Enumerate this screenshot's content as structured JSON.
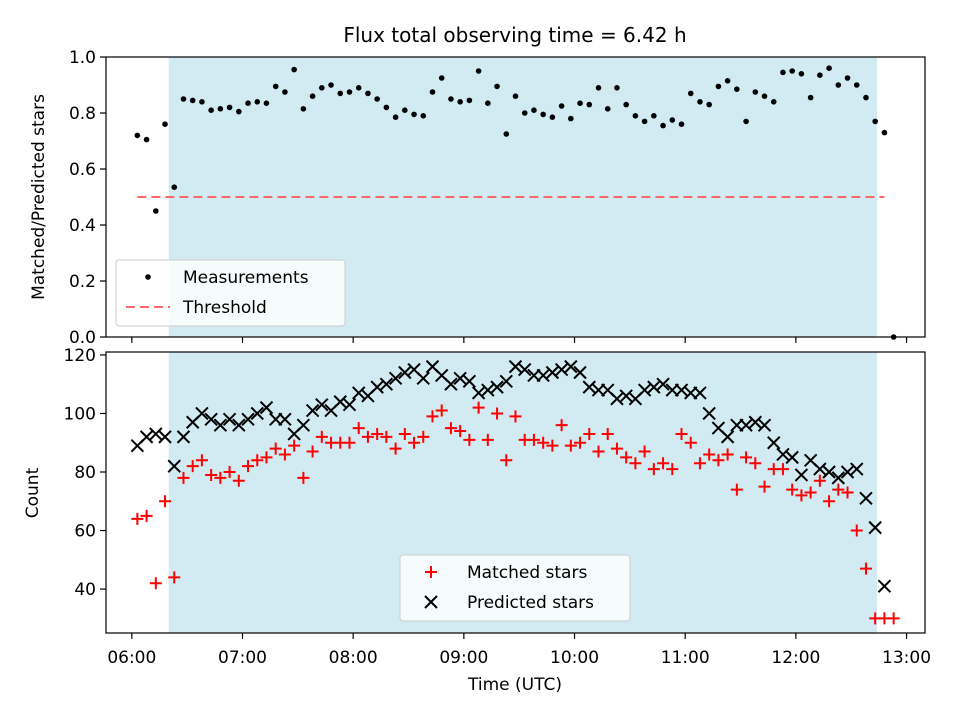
{
  "title": "Flux total observing time = 6.42 h",
  "shaded_region": {
    "start": "06:20",
    "end": "12:44",
    "color": "#add8e6"
  },
  "x_axis": {
    "label": "Time (UTC)",
    "ticks": [
      "06:00",
      "07:00",
      "08:00",
      "09:00",
      "10:00",
      "11:00",
      "12:00",
      "13:00"
    ]
  },
  "chart_data": [
    {
      "type": "scatter",
      "ylabel": "Matched/Predicted stars",
      "xlim": [
        "05:46",
        "13:10"
      ],
      "ylim": [
        0,
        1.0
      ],
      "yticks": [
        "0.0",
        "0.2",
        "0.4",
        "0.6",
        "0.8",
        "1.0"
      ],
      "legend": {
        "placement": "lower-left",
        "entries": [
          "Measurements",
          "Threshold"
        ]
      },
      "threshold": {
        "name": "Threshold",
        "value": 0.5,
        "x_from": "06:03",
        "x_to": "12:48",
        "color": "#ff6666",
        "style": "dashed"
      },
      "series": [
        {
          "name": "Measurements",
          "color": "#000000",
          "x": [
            "06:03",
            "06:08",
            "06:13",
            "06:18",
            "06:23",
            "06:28",
            "06:33",
            "06:38",
            "06:43",
            "06:48",
            "06:53",
            "06:58",
            "07:03",
            "07:08",
            "07:13",
            "07:18",
            "07:23",
            "07:28",
            "07:33",
            "07:38",
            "07:43",
            "07:48",
            "07:53",
            "07:58",
            "08:03",
            "08:08",
            "08:13",
            "08:18",
            "08:23",
            "08:28",
            "08:33",
            "08:38",
            "08:43",
            "08:48",
            "08:53",
            "08:58",
            "09:03",
            "09:08",
            "09:13",
            "09:18",
            "09:23",
            "09:28",
            "09:33",
            "09:38",
            "09:43",
            "09:48",
            "09:53",
            "09:58",
            "10:03",
            "10:08",
            "10:13",
            "10:18",
            "10:23",
            "10:28",
            "10:33",
            "10:38",
            "10:43",
            "10:48",
            "10:53",
            "10:58",
            "11:03",
            "11:08",
            "11:13",
            "11:18",
            "11:23",
            "11:28",
            "11:33",
            "11:38",
            "11:43",
            "11:48",
            "11:53",
            "11:58",
            "12:03",
            "12:08",
            "12:13",
            "12:18",
            "12:23",
            "12:28",
            "12:33",
            "12:38",
            "12:43",
            "12:48"
          ],
          "y": [
            0.72,
            0.705,
            0.45,
            0.76,
            0.535,
            0.85,
            0.845,
            0.84,
            0.81,
            0.815,
            0.82,
            0.805,
            0.835,
            0.84,
            0.835,
            0.895,
            0.875,
            0.955,
            0.815,
            0.86,
            0.89,
            0.9,
            0.87,
            0.875,
            0.89,
            0.87,
            0.85,
            0.82,
            0.785,
            0.81,
            0.795,
            0.79,
            0.875,
            0.925,
            0.85,
            0.84,
            0.845,
            0.95,
            0.835,
            0.895,
            0.725,
            0.86,
            0.8,
            0.81,
            0.795,
            0.785,
            0.825,
            0.78,
            0.835,
            0.83,
            0.89,
            0.815,
            0.89,
            0.83,
            0.79,
            0.77,
            0.79,
            0.755,
            0.775,
            0.76,
            0.87,
            0.84,
            0.83,
            0.895,
            0.915,
            0.885,
            0.77,
            0.875,
            0.86,
            0.84,
            0.945,
            0.95,
            0.94,
            0.855,
            0.935,
            0.96,
            0.9,
            0.925,
            0.9,
            0.855,
            0.77,
            0.73
          ]
        },
        {
          "name": "",
          "color": "#000000",
          "x": [
            "12:53"
          ],
          "y": [
            0.0
          ]
        }
      ]
    },
    {
      "type": "scatter",
      "ylabel": "Count",
      "xlim": [
        "05:46",
        "13:10"
      ],
      "ylim": [
        25,
        121
      ],
      "yticks": [
        "40",
        "60",
        "80",
        "100",
        "120"
      ],
      "legend": {
        "placement": "lower-center",
        "entries": [
          "Matched stars",
          "Predicted stars"
        ]
      },
      "series": [
        {
          "name": "Matched stars",
          "color": "#ff0000",
          "marker": "plus",
          "x": [
            "06:03",
            "06:08",
            "06:13",
            "06:18",
            "06:23",
            "06:28",
            "06:33",
            "06:38",
            "06:43",
            "06:48",
            "06:53",
            "06:58",
            "07:03",
            "07:08",
            "07:13",
            "07:18",
            "07:23",
            "07:28",
            "07:33",
            "07:38",
            "07:43",
            "07:48",
            "07:53",
            "07:58",
            "08:03",
            "08:08",
            "08:13",
            "08:18",
            "08:23",
            "08:28",
            "08:33",
            "08:38",
            "08:43",
            "08:48",
            "08:53",
            "08:58",
            "09:03",
            "09:08",
            "09:13",
            "09:18",
            "09:23",
            "09:28",
            "09:33",
            "09:38",
            "09:43",
            "09:48",
            "09:53",
            "09:58",
            "10:03",
            "10:08",
            "10:13",
            "10:18",
            "10:23",
            "10:28",
            "10:33",
            "10:38",
            "10:43",
            "10:48",
            "10:53",
            "10:58",
            "11:03",
            "11:08",
            "11:13",
            "11:18",
            "11:23",
            "11:28",
            "11:33",
            "11:38",
            "11:43",
            "11:48",
            "11:53",
            "11:58",
            "12:03",
            "12:08",
            "12:13",
            "12:18",
            "12:23",
            "12:28",
            "12:33",
            "12:38",
            "12:43",
            "12:48",
            "12:53"
          ],
          "y": [
            64,
            65,
            42,
            70,
            44,
            78,
            82,
            84,
            79,
            78,
            80,
            77,
            82,
            84,
            85,
            88,
            86,
            89,
            78,
            87,
            92,
            90,
            90,
            90,
            95,
            92,
            93,
            92,
            88,
            93,
            90,
            92,
            99,
            101,
            95,
            94,
            91,
            102,
            91,
            100,
            84,
            99,
            91,
            91,
            90,
            89,
            96,
            89,
            90,
            93,
            87,
            93,
            88,
            85,
            83,
            87,
            81,
            83,
            81,
            93,
            90,
            83,
            86,
            84,
            86,
            74,
            85,
            83,
            75,
            81,
            81,
            74,
            72,
            73,
            77,
            70,
            74,
            73,
            60,
            47,
            30,
            30,
            30
          ]
        },
        {
          "name": "Predicted stars",
          "color": "#000000",
          "marker": "x",
          "x": [
            "06:03",
            "06:08",
            "06:13",
            "06:18",
            "06:23",
            "06:28",
            "06:33",
            "06:38",
            "06:43",
            "06:48",
            "06:53",
            "06:58",
            "07:03",
            "07:08",
            "07:13",
            "07:18",
            "07:23",
            "07:28",
            "07:33",
            "07:38",
            "07:43",
            "07:48",
            "07:53",
            "07:58",
            "08:03",
            "08:08",
            "08:13",
            "08:18",
            "08:23",
            "08:28",
            "08:33",
            "08:38",
            "08:43",
            "08:48",
            "08:53",
            "08:58",
            "09:03",
            "09:08",
            "09:13",
            "09:18",
            "09:23",
            "09:28",
            "09:33",
            "09:38",
            "09:43",
            "09:48",
            "09:53",
            "09:58",
            "10:03",
            "10:08",
            "10:13",
            "10:18",
            "10:23",
            "10:28",
            "10:33",
            "10:38",
            "10:43",
            "10:48",
            "10:53",
            "10:58",
            "11:03",
            "11:08",
            "11:13",
            "11:18",
            "11:23",
            "11:28",
            "11:33",
            "11:38",
            "11:43",
            "11:48",
            "11:53",
            "11:58",
            "12:03",
            "12:08",
            "12:13",
            "12:18",
            "12:23",
            "12:28",
            "12:33",
            "12:38",
            "12:43",
            "12:48"
          ],
          "y": [
            89,
            92,
            93,
            92,
            82,
            92,
            97,
            100,
            98,
            96,
            98,
            96,
            98,
            100,
            102,
            98,
            98,
            93,
            96,
            101,
            103,
            101,
            104,
            103,
            107,
            106,
            109,
            110,
            112,
            114,
            115,
            112,
            116,
            113,
            110,
            112,
            111,
            107,
            108,
            109,
            111,
            116,
            115,
            113,
            113,
            114,
            115,
            116,
            114,
            109,
            108,
            108,
            105,
            106,
            105,
            108,
            109,
            110,
            108,
            108,
            107,
            107,
            100,
            95,
            92,
            96,
            96,
            97,
            96,
            90,
            86,
            85,
            79,
            84,
            81,
            80,
            78,
            80,
            81,
            71,
            61,
            41
          ]
        }
      ]
    }
  ]
}
